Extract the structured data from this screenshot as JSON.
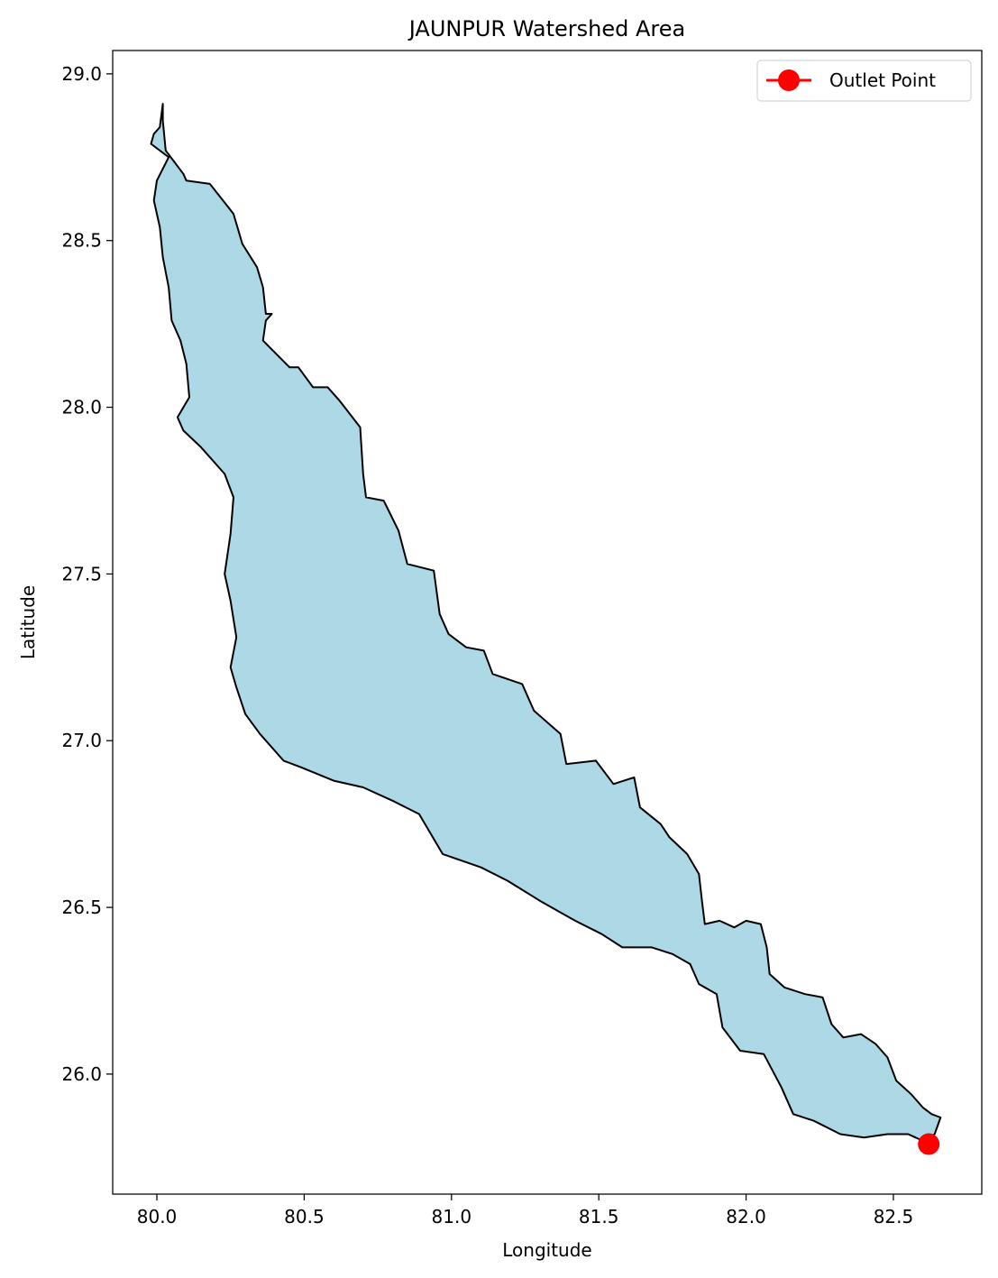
{
  "chart_data": {
    "type": "map",
    "title": "JAUNPUR Watershed Area",
    "xlabel": "Longitude",
    "ylabel": "Latitude",
    "xlim": [
      79.85,
      82.8
    ],
    "ylim": [
      25.64,
      29.07
    ],
    "xticks": [
      80.0,
      80.5,
      81.0,
      81.5,
      82.0,
      82.5
    ],
    "xtick_labels": [
      "80.0",
      "80.5",
      "81.0",
      "81.5",
      "82.0",
      "82.5"
    ],
    "yticks": [
      26.0,
      26.5,
      27.0,
      27.5,
      28.0,
      28.5,
      29.0
    ],
    "ytick_labels": [
      "26.0",
      "26.5",
      "27.0",
      "27.5",
      "28.0",
      "28.5",
      "29.0"
    ],
    "grid": false,
    "legend_position": "top-right",
    "legend": [
      {
        "label": "Outlet Point",
        "color": "#ff0000",
        "marker": "circle"
      }
    ],
    "watershed": {
      "fill_color": "#add8e6",
      "edge_color": "#000000",
      "boundary": [
        [
          80.02,
          28.91
        ],
        [
          80.02,
          28.86
        ],
        [
          80.03,
          28.77
        ],
        [
          80.09,
          28.7
        ],
        [
          80.1,
          28.68
        ],
        [
          80.18,
          28.67
        ],
        [
          80.26,
          28.58
        ],
        [
          80.29,
          28.49
        ],
        [
          80.34,
          28.42
        ],
        [
          80.36,
          28.36
        ],
        [
          80.37,
          28.28
        ],
        [
          80.39,
          28.28
        ],
        [
          80.37,
          28.26
        ],
        [
          80.36,
          28.2
        ],
        [
          80.45,
          28.12
        ],
        [
          80.48,
          28.12
        ],
        [
          80.53,
          28.06
        ],
        [
          80.58,
          28.06
        ],
        [
          80.62,
          28.02
        ],
        [
          80.69,
          27.94
        ],
        [
          80.7,
          27.8
        ],
        [
          80.71,
          27.73
        ],
        [
          80.77,
          27.72
        ],
        [
          80.82,
          27.63
        ],
        [
          80.85,
          27.53
        ],
        [
          80.94,
          27.51
        ],
        [
          80.96,
          27.38
        ],
        [
          80.99,
          27.32
        ],
        [
          81.05,
          27.28
        ],
        [
          81.11,
          27.27
        ],
        [
          81.14,
          27.2
        ],
        [
          81.24,
          27.17
        ],
        [
          81.28,
          27.09
        ],
        [
          81.37,
          27.02
        ],
        [
          81.39,
          26.93
        ],
        [
          81.49,
          26.94
        ],
        [
          81.55,
          26.87
        ],
        [
          81.62,
          26.89
        ],
        [
          81.64,
          26.8
        ],
        [
          81.71,
          26.75
        ],
        [
          81.74,
          26.71
        ],
        [
          81.8,
          26.66
        ],
        [
          81.84,
          26.6
        ],
        [
          81.85,
          26.52
        ],
        [
          81.86,
          26.45
        ],
        [
          81.91,
          26.46
        ],
        [
          81.96,
          26.44
        ],
        [
          82.0,
          26.46
        ],
        [
          82.05,
          26.45
        ],
        [
          82.07,
          26.38
        ],
        [
          82.08,
          26.3
        ],
        [
          82.13,
          26.26
        ],
        [
          82.2,
          26.24
        ],
        [
          82.26,
          26.23
        ],
        [
          82.29,
          26.15
        ],
        [
          82.33,
          26.11
        ],
        [
          82.39,
          26.12
        ],
        [
          82.44,
          26.09
        ],
        [
          82.48,
          26.05
        ],
        [
          82.51,
          25.98
        ],
        [
          82.56,
          25.94
        ],
        [
          82.6,
          25.9
        ],
        [
          82.63,
          25.88
        ],
        [
          82.66,
          25.87
        ],
        [
          82.64,
          25.82
        ],
        [
          82.6,
          25.8
        ],
        [
          82.55,
          25.82
        ],
        [
          82.48,
          25.82
        ],
        [
          82.4,
          25.81
        ],
        [
          82.32,
          25.82
        ],
        [
          82.23,
          25.86
        ],
        [
          82.16,
          25.88
        ],
        [
          82.12,
          25.96
        ],
        [
          82.06,
          26.06
        ],
        [
          81.98,
          26.07
        ],
        [
          81.92,
          26.14
        ],
        [
          81.9,
          26.24
        ],
        [
          81.84,
          26.27
        ],
        [
          81.81,
          26.33
        ],
        [
          81.75,
          26.36
        ],
        [
          81.68,
          26.38
        ],
        [
          81.58,
          26.38
        ],
        [
          81.51,
          26.42
        ],
        [
          81.42,
          26.46
        ],
        [
          81.3,
          26.52
        ],
        [
          81.19,
          26.58
        ],
        [
          81.1,
          26.62
        ],
        [
          80.97,
          26.66
        ],
        [
          80.89,
          26.78
        ],
        [
          80.8,
          26.82
        ],
        [
          80.7,
          26.86
        ],
        [
          80.6,
          26.88
        ],
        [
          80.49,
          26.92
        ],
        [
          80.43,
          26.94
        ],
        [
          80.35,
          27.02
        ],
        [
          80.3,
          27.08
        ],
        [
          80.27,
          27.16
        ],
        [
          80.25,
          27.22
        ],
        [
          80.27,
          27.31
        ],
        [
          80.25,
          27.42
        ],
        [
          80.23,
          27.5
        ],
        [
          80.25,
          27.62
        ],
        [
          80.26,
          27.73
        ],
        [
          80.23,
          27.8
        ],
        [
          80.15,
          27.88
        ],
        [
          80.09,
          27.93
        ],
        [
          80.07,
          27.97
        ],
        [
          80.11,
          28.03
        ],
        [
          80.1,
          28.13
        ],
        [
          80.08,
          28.2
        ],
        [
          80.05,
          28.26
        ],
        [
          80.04,
          28.36
        ],
        [
          80.02,
          28.45
        ],
        [
          80.01,
          28.54
        ],
        [
          79.99,
          28.62
        ],
        [
          80.0,
          28.68
        ],
        [
          80.04,
          28.75
        ],
        [
          79.98,
          28.79
        ],
        [
          79.99,
          28.82
        ],
        [
          80.01,
          28.84
        ]
      ]
    },
    "outlet_point": {
      "lon": 82.62,
      "lat": 25.79,
      "color": "#ff0000"
    }
  }
}
